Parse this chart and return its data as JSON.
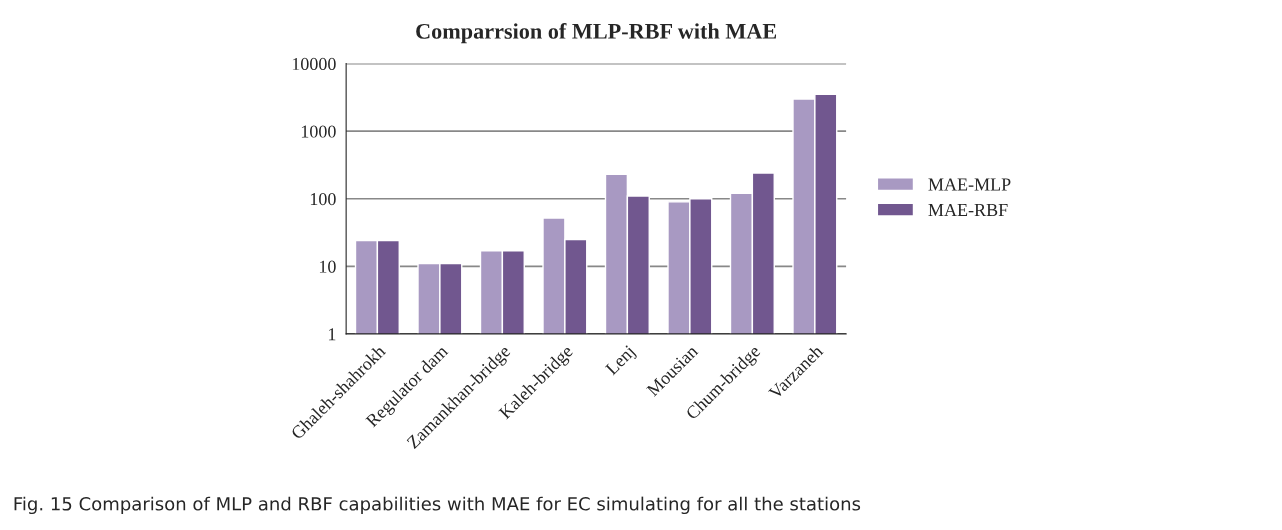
{
  "chart_data": {
    "type": "bar",
    "title": "Comparrsion of MLP-RBF with MAE",
    "categories": [
      "Ghaleh-shahrokh",
      "Regulator dam",
      "Zamankhan-bridge",
      "Kaleh-bridge",
      "Lenj",
      "Mousian",
      "Chum-bridge",
      "Varzaneh"
    ],
    "series": [
      {
        "name": "MAE-MLP",
        "color": "#a899c2",
        "values": [
          24,
          11,
          17,
          52,
          230,
          90,
          120,
          3000
        ]
      },
      {
        "name": "MAE-RBF",
        "color": "#71578f",
        "values": [
          24,
          11,
          17,
          25,
          110,
          100,
          240,
          3500
        ]
      }
    ],
    "log": "y",
    "ylim": [
      1,
      10000
    ],
    "yticks": [
      1,
      10,
      100,
      1000,
      10000
    ],
    "grid": "y",
    "legend": "right",
    "annotations": [
      "Fig. 15 Comparison of MLP and RBF capabilities with MAE for EC simulating for all the stations"
    ]
  }
}
